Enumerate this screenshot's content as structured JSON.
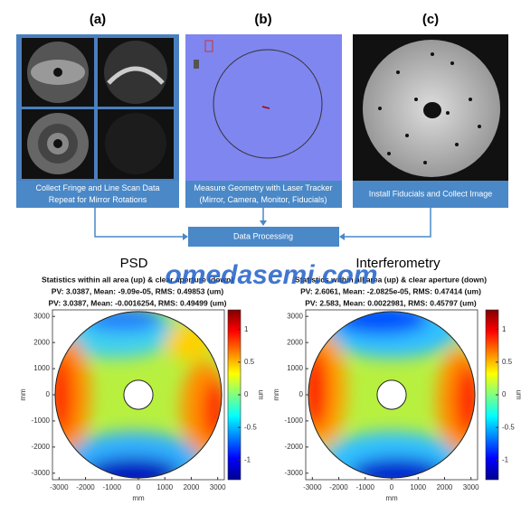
{
  "panels": [
    {
      "label": "(a)",
      "caption": [
        "Collect Fringe and Line Scan Data",
        "Repeat for Mirror Rotations"
      ]
    },
    {
      "label": "(b)",
      "caption": [
        "Measure Geometry with Laser Tracker",
        "(Mirror, Camera, Monitor, Fiducials)"
      ]
    },
    {
      "label": "(c)",
      "caption": [
        "Install Fiducials and Collect Image"
      ]
    }
  ],
  "process": "Data Processing",
  "watermark": "omedasemi.com",
  "plots": [
    {
      "title": "PSD",
      "stats": [
        "Statistics within all area (up) & clear aperture (down)",
        "PV: 3.0387, Mean: -9.09e-05, RMS: 0.49853 (um)",
        "PV: 3.0387, Mean: -0.0016254, RMS: 0.49499 (um)"
      ],
      "xlim": [
        -3250,
        3250
      ],
      "ylim": [
        -3250,
        3250
      ],
      "xticks": [
        -3000,
        -2000,
        -1000,
        0,
        1000,
        2000,
        3000
      ],
      "yticks": [
        -3000,
        -2000,
        -1000,
        0,
        1000,
        2000,
        3000
      ],
      "xlabel": "mm",
      "ylabel": "mm",
      "clim": [
        -1.3,
        1.3
      ],
      "cticks": [
        -1,
        -0.5,
        0,
        0.5,
        1
      ],
      "clabel": "um"
    },
    {
      "title": "Interferometry",
      "stats": [
        "Statistics within all area (up) & clear aperture (down)",
        "PV: 2.6061, Mean: -2.0825e-05, RMS: 0.47414 (um)",
        "PV: 2.583, Mean: 0.0022981, RMS: 0.45797 (um)"
      ],
      "xlim": [
        -3250,
        3250
      ],
      "ylim": [
        -3250,
        3250
      ],
      "xticks": [
        -3000,
        -2000,
        -1000,
        0,
        1000,
        2000,
        3000
      ],
      "yticks": [
        -3000,
        -2000,
        -1000,
        0,
        1000,
        2000,
        3000
      ],
      "xlabel": "mm",
      "ylabel": "mm",
      "clim": [
        -1.3,
        1.3
      ],
      "cticks": [
        -1,
        -0.5,
        0,
        0.5,
        1
      ],
      "clabel": "um"
    }
  ]
}
